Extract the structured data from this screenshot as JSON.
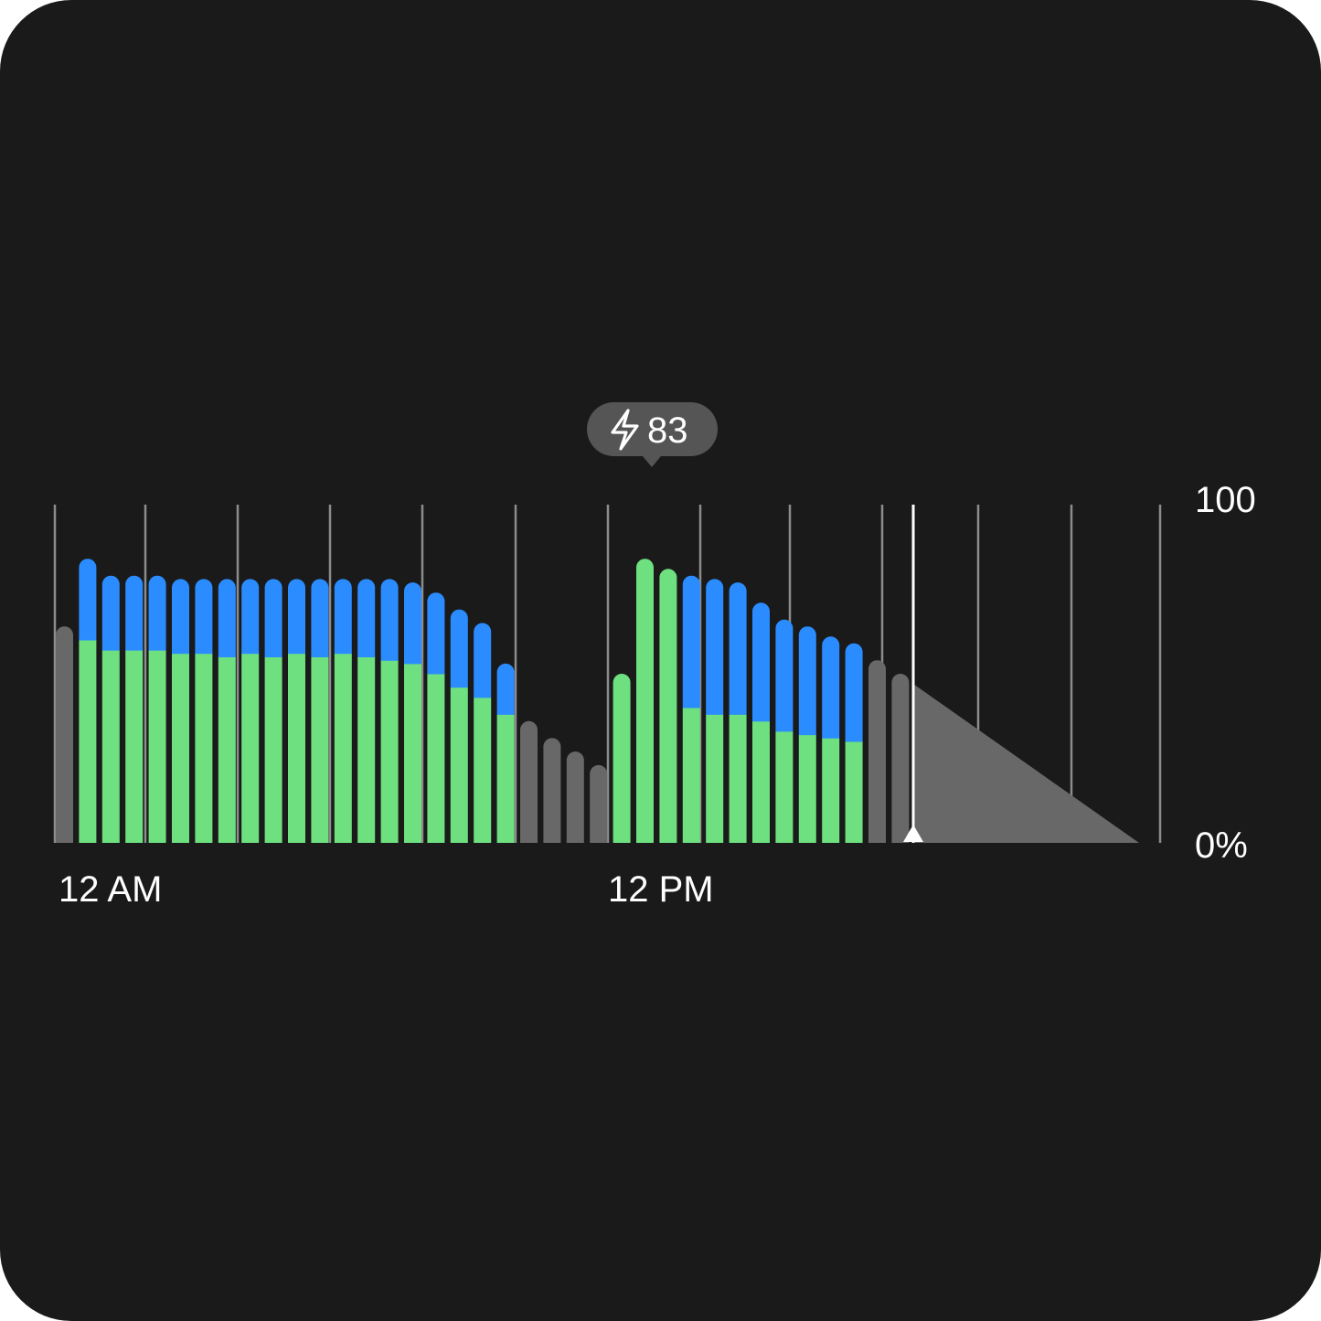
{
  "badge": {
    "icon": "lightning-bolt-icon",
    "value": "83"
  },
  "chart_data": {
    "type": "bar",
    "stacked": true,
    "ylim": [
      0,
      100
    ],
    "y_tick_labels": [
      "100",
      "0%"
    ],
    "x_tick_labels": [
      "12 AM",
      "12 PM"
    ],
    "grid": true,
    "colors": {
      "green": "#6ee07f",
      "blue": "#2b8cff",
      "gray": "#686868",
      "grid": "#8c8c8c",
      "now": "#ffffff",
      "background": "#1a1a1a",
      "badge": "#555555"
    },
    "series": [
      {
        "key": "green",
        "values": [
          0,
          60,
          57,
          57,
          57,
          56,
          56,
          55,
          56,
          55,
          56,
          55,
          56,
          55,
          54,
          53,
          50,
          46,
          43,
          38,
          0,
          0,
          0,
          0,
          50,
          84,
          81,
          40,
          38,
          38,
          36,
          33,
          32,
          31,
          30,
          0,
          0
        ]
      },
      {
        "key": "blue",
        "values": [
          0,
          24,
          22,
          22,
          22,
          22,
          22,
          23,
          22,
          23,
          22,
          23,
          22,
          23,
          24,
          24,
          24,
          23,
          22,
          15,
          0,
          0,
          0,
          0,
          0,
          0,
          0,
          39,
          40,
          39,
          35,
          33,
          32,
          30,
          29,
          0,
          0
        ]
      },
      {
        "key": "gray",
        "values": [
          64,
          0,
          0,
          0,
          0,
          0,
          0,
          0,
          0,
          0,
          0,
          0,
          0,
          0,
          0,
          0,
          0,
          0,
          0,
          0,
          36,
          31,
          27,
          23,
          0,
          0,
          0,
          0,
          0,
          0,
          0,
          0,
          0,
          0,
          0,
          54,
          50
        ]
      }
    ],
    "projection": {
      "start": 47,
      "end": 0
    }
  }
}
